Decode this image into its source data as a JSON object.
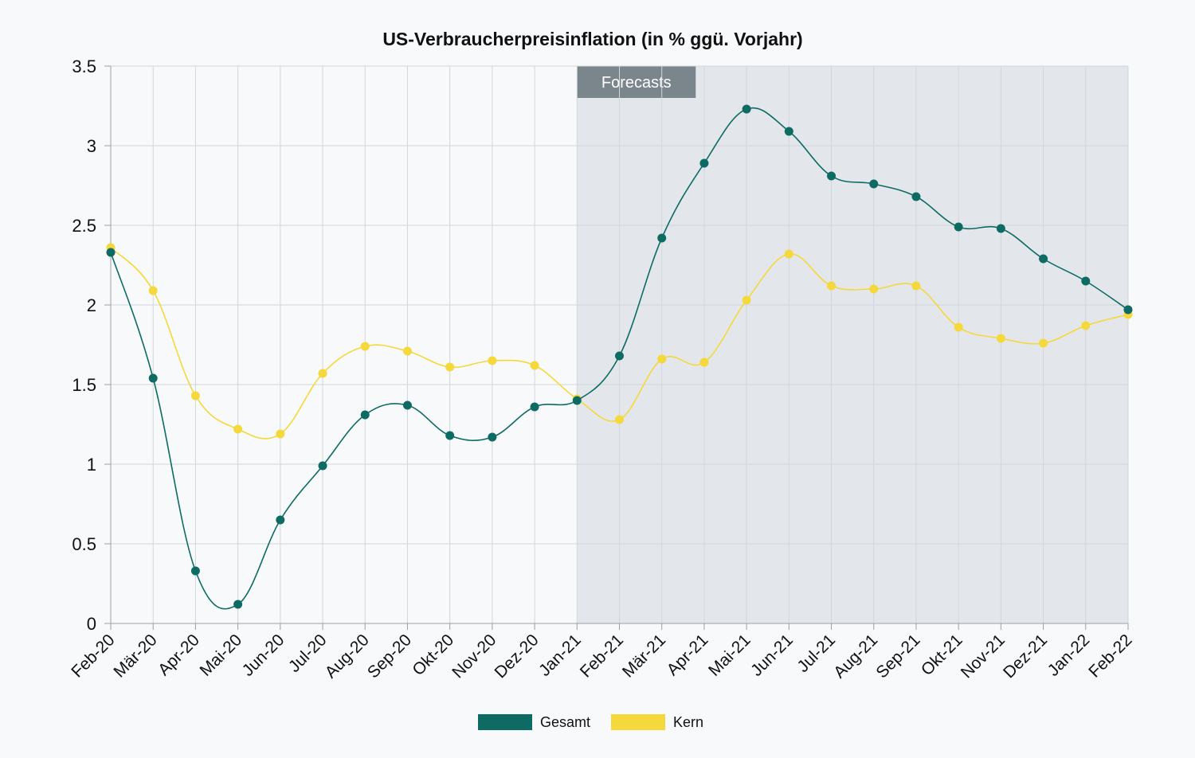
{
  "chart_data": {
    "type": "line",
    "title": "US-Verbraucherpreisinflation (in % ggü. Vorjahr)",
    "xlabel": "",
    "ylabel": "",
    "categories": [
      "Feb-20",
      "Mär-20",
      "Apr-20",
      "Mai-20",
      "Jun-20",
      "Jul-20",
      "Aug-20",
      "Sep-20",
      "Okt-20",
      "Nov-20",
      "Dez-20",
      "Jan-21",
      "Feb-21",
      "Mär-21",
      "Apr-21",
      "Mai-21",
      "Jun-21",
      "Jul-21",
      "Aug-21",
      "Sep-21",
      "Okt-21",
      "Nov-21",
      "Dez-21",
      "Jan-22",
      "Feb-22"
    ],
    "ylim": [
      0,
      3.5
    ],
    "yticks": [
      0,
      0.5,
      1,
      1.5,
      2,
      2.5,
      3,
      3.5
    ],
    "ytick_labels": [
      "0",
      "0.5",
      "1",
      "1.5",
      "2",
      "2.5",
      "3",
      "3.5"
    ],
    "grid": true,
    "legend_position": "bottom",
    "forecast_region": {
      "label": "Forecasts",
      "start": "Jan-21",
      "end": "Feb-22",
      "color": "#e3e7ec",
      "label_bg": "#7b868c"
    },
    "series": [
      {
        "name": "Gesamt",
        "color": "#0e6b63",
        "values": [
          2.33,
          1.54,
          0.33,
          0.12,
          0.65,
          0.99,
          1.31,
          1.37,
          1.18,
          1.17,
          1.36,
          1.4,
          1.68,
          2.42,
          2.89,
          3.23,
          3.09,
          2.81,
          2.76,
          2.68,
          2.49,
          2.48,
          2.29,
          2.15,
          1.97
        ]
      },
      {
        "name": "Kern",
        "color": "#f5d83b",
        "values": [
          2.36,
          2.09,
          1.43,
          1.22,
          1.19,
          1.57,
          1.74,
          1.71,
          1.61,
          1.65,
          1.62,
          1.41,
          1.28,
          1.66,
          1.64,
          2.03,
          2.32,
          2.12,
          2.1,
          2.12,
          1.86,
          1.79,
          1.76,
          1.87,
          1.94
        ]
      }
    ]
  }
}
